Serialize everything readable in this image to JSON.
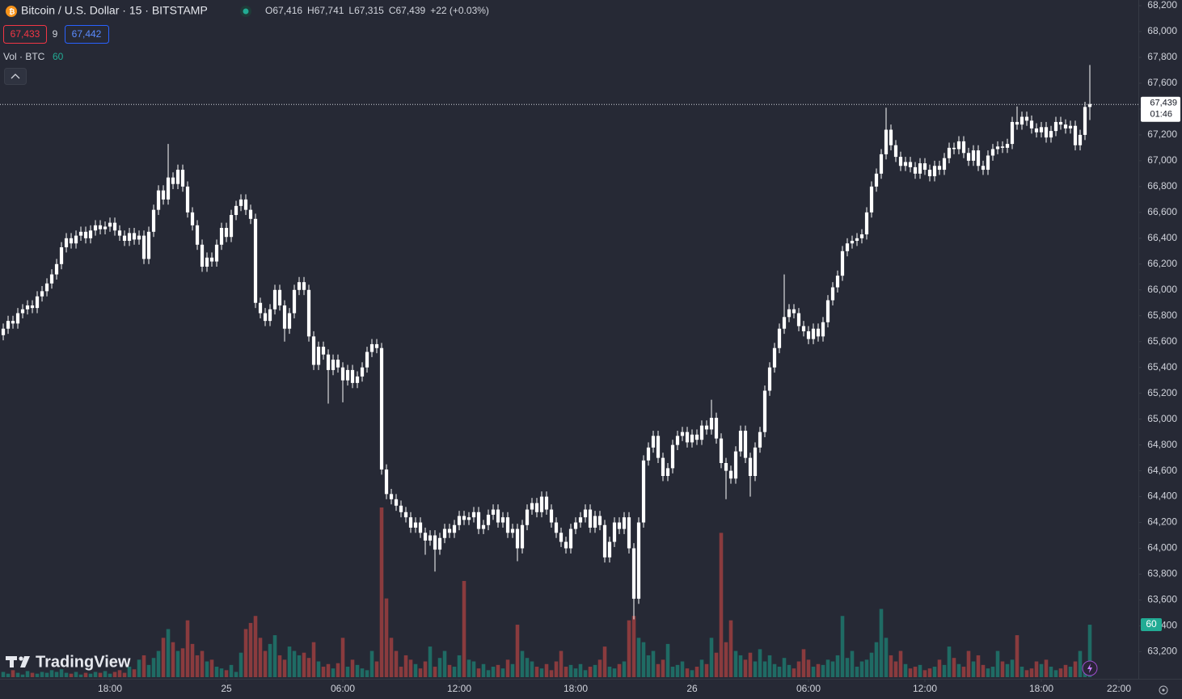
{
  "header": {
    "title": "Bitcoin / U.S. Dollar · 15 · BITSTAMP",
    "ohlc": [
      {
        "label": "O",
        "value": "67,416"
      },
      {
        "label": "H",
        "value": "67,741"
      },
      {
        "label": "L",
        "value": "67,315"
      },
      {
        "label": "C",
        "value": "67,439"
      }
    ],
    "change": "+22 (+0.03%)",
    "bid": "67,433",
    "spread": "9",
    "ask": "67,442",
    "volume_title": "Vol · BTC",
    "volume_value": "60"
  },
  "watermark": "TradingView",
  "chart_data": {
    "type": "candlestick",
    "up_color": "#ffffff",
    "down_color": "#ffffff",
    "volume_up_color": "#1f6b64",
    "volume_down_color": "#8a3b3e",
    "grid": false,
    "ylim": [
      62990,
      68244
    ],
    "yticks": [
      {
        "value": 63200,
        "label": "63,200"
      },
      {
        "value": 63400,
        "label": "63,400"
      },
      {
        "value": 63600,
        "label": "63,600"
      },
      {
        "value": 63800,
        "label": "63,800"
      },
      {
        "value": 64000,
        "label": "64,000"
      },
      {
        "value": 64200,
        "label": "64,200"
      },
      {
        "value": 64400,
        "label": "64,400"
      },
      {
        "value": 64600,
        "label": "64,600"
      },
      {
        "value": 64800,
        "label": "64,800"
      },
      {
        "value": 65000,
        "label": "65,000"
      },
      {
        "value": 65200,
        "label": "65,200"
      },
      {
        "value": 65400,
        "label": "65,400"
      },
      {
        "value": 65600,
        "label": "65,600"
      },
      {
        "value": 65800,
        "label": "65,800"
      },
      {
        "value": 66000,
        "label": "66,000"
      },
      {
        "value": 66200,
        "label": "66,200"
      },
      {
        "value": 66400,
        "label": "66,400"
      },
      {
        "value": 66600,
        "label": "66,600"
      },
      {
        "value": 66800,
        "label": "66,800"
      },
      {
        "value": 67000,
        "label": "67,000"
      },
      {
        "value": 67200,
        "label": "67,200"
      },
      {
        "value": 67400,
        "label": "67,400"
      },
      {
        "value": 67600,
        "label": "67,600"
      },
      {
        "value": 67800,
        "label": "67,800"
      },
      {
        "value": 68000,
        "label": "68,000"
      },
      {
        "value": 68200,
        "label": "68,200"
      }
    ],
    "xlim": [
      -0.67,
      234
    ],
    "xticks": [
      {
        "value": 22,
        "label": "18:00"
      },
      {
        "value": 46,
        "label": "25"
      },
      {
        "value": 70,
        "label": "06:00"
      },
      {
        "value": 94,
        "label": "12:00"
      },
      {
        "value": 118,
        "label": "18:00"
      },
      {
        "value": 142,
        "label": "26"
      },
      {
        "value": 166,
        "label": "06:00"
      },
      {
        "value": 190,
        "label": "12:00"
      },
      {
        "value": 214,
        "label": "18:00"
      },
      {
        "value": 230,
        "label": "22:00"
      }
    ],
    "last_price": {
      "value": 67439,
      "label": "67,439"
    },
    "countdown": "01:46",
    "open": [
      65650,
      65700,
      65760,
      65740,
      65820,
      65850,
      65880,
      65860,
      65950,
      65990,
      66050,
      66120,
      66200,
      66330,
      66400,
      66360,
      66420,
      66450,
      66400,
      66460,
      66500,
      66470,
      66490,
      66520,
      66460,
      66420,
      66380,
      66440,
      66390,
      66420,
      66240,
      66450,
      66620,
      66770,
      66700,
      66870,
      66820,
      66930,
      66800,
      66600,
      66500,
      66350,
      66180,
      66250,
      66220,
      66350,
      66480,
      66410,
      66580,
      66650,
      66700,
      66620,
      66550,
      65900,
      65820,
      65760,
      65850,
      66000,
      65880,
      65700,
      65820,
      66000,
      66060,
      66000,
      65640,
      65420,
      65560,
      65500,
      65380,
      65460,
      65400,
      65300,
      65380,
      65280,
      65330,
      65400,
      65520,
      65580,
      65550,
      64610,
      64420,
      64380,
      64330,
      64280,
      64240,
      64160,
      64200,
      64120,
      64060,
      64100,
      63990,
      64080,
      64150,
      64120,
      64180,
      64250,
      64220,
      64240,
      64280,
      64150,
      64180,
      64260,
      64300,
      64200,
      64240,
      64120,
      64150,
      64000,
      64180,
      64300,
      64350,
      64280,
      64400,
      64300,
      64200,
      64120,
      64050,
      64000,
      64150,
      64200,
      64240,
      64300,
      64160,
      64250,
      64180,
      63930,
      64050,
      64200,
      64150,
      64240,
      64000,
      63610,
      64200,
      64680,
      64780,
      64870,
      64700,
      64560,
      64620,
      64800,
      64870,
      64900,
      64820,
      64880,
      64840,
      64950,
      64920,
      65010,
      64850,
      64660,
      64600,
      64540,
      64750,
      64910,
      64700,
      64560,
      64780,
      64900,
      65220,
      65400,
      65550,
      65700,
      65790,
      65850,
      65820,
      65720,
      65680,
      65620,
      65700,
      65640,
      65750,
      65920,
      66020,
      66110,
      66300,
      66360,
      66380,
      66400,
      66430,
      66600,
      66800,
      66900,
      67050,
      67240,
      67120,
      67030,
      66960,
      66990,
      66950,
      66900,
      66980,
      66930,
      66880,
      66960,
      66930,
      67020,
      67100,
      67090,
      67150,
      67060,
      67000,
      67080,
      66960,
      66930,
      67040,
      67090,
      67110,
      67100,
      67130,
      67300,
      67280,
      67340,
      67310,
      67250,
      67220,
      67260,
      67180,
      67230,
      67300,
      67280,
      67250,
      67270,
      67120,
      67200,
      67416
    ],
    "high": [
      65740,
      65800,
      65800,
      65860,
      65890,
      65920,
      65920,
      65990,
      66030,
      66090,
      66160,
      66240,
      66370,
      66440,
      66440,
      66460,
      66490,
      66490,
      66500,
      66540,
      66540,
      66530,
      66560,
      66560,
      66500,
      66460,
      66480,
      66480,
      66460,
      66460,
      66490,
      66660,
      66810,
      66810,
      67130,
      66910,
      66970,
      66970,
      66840,
      66640,
      66540,
      66390,
      66290,
      66290,
      66390,
      66520,
      66520,
      66620,
      66690,
      66740,
      66740,
      66660,
      66590,
      65940,
      65860,
      65890,
      66040,
      66040,
      65920,
      65860,
      66040,
      66100,
      66100,
      66040,
      65680,
      65600,
      65600,
      65540,
      65500,
      65500,
      65440,
      65420,
      65420,
      65370,
      65440,
      65560,
      65620,
      65620,
      65590,
      64650,
      64460,
      64420,
      64370,
      64320,
      64280,
      64240,
      64240,
      64160,
      64140,
      64140,
      64120,
      64190,
      64190,
      64220,
      64290,
      64290,
      64280,
      64320,
      64320,
      64220,
      64300,
      64340,
      64340,
      64280,
      64280,
      64190,
      64190,
      64220,
      64340,
      64390,
      64390,
      64440,
      64440,
      64340,
      64240,
      64160,
      64090,
      64190,
      64240,
      64280,
      64340,
      64340,
      64290,
      64290,
      64220,
      64090,
      64240,
      64240,
      64280,
      64280,
      64040,
      64240,
      64720,
      64820,
      64910,
      64910,
      64740,
      64660,
      64840,
      64910,
      64940,
      64940,
      64920,
      64920,
      64990,
      64990,
      65150,
      65050,
      64890,
      64700,
      64640,
      64790,
      64950,
      64950,
      64740,
      64820,
      64940,
      65260,
      65440,
      65590,
      65740,
      66120,
      65890,
      65890,
      65860,
      65760,
      65720,
      65740,
      65740,
      65790,
      65960,
      66060,
      66150,
      66340,
      66400,
      66420,
      66440,
      66470,
      66640,
      66840,
      66940,
      67090,
      67410,
      67280,
      67160,
      67070,
      67030,
      67030,
      66990,
      67020,
      67020,
      66970,
      67000,
      67000,
      67060,
      67140,
      67140,
      67190,
      67190,
      67100,
      67120,
      67120,
      67000,
      67080,
      67130,
      67150,
      67150,
      67170,
      67340,
      67420,
      67380,
      67380,
      67350,
      67290,
      67300,
      67300,
      67270,
      67340,
      67340,
      67320,
      67310,
      67310,
      67240,
      67456,
      67741
    ],
    "low": [
      65610,
      65660,
      65700,
      65700,
      65780,
      65810,
      65820,
      65820,
      65910,
      65950,
      66010,
      66080,
      66160,
      66290,
      66320,
      66320,
      66380,
      66360,
      66360,
      66420,
      66430,
      66430,
      66450,
      66420,
      66380,
      66340,
      66340,
      66350,
      66350,
      66200,
      66200,
      66410,
      66580,
      66660,
      66660,
      66780,
      66780,
      66760,
      66560,
      66460,
      66310,
      66140,
      66140,
      66180,
      66180,
      66310,
      66370,
      66370,
      66540,
      66610,
      66580,
      66510,
      65860,
      65780,
      65720,
      65720,
      65810,
      65840,
      65600,
      65660,
      65780,
      65960,
      65960,
      65600,
      65380,
      65380,
      65460,
      65120,
      65340,
      65360,
      65130,
      65260,
      65240,
      65240,
      65290,
      65360,
      65480,
      65510,
      64570,
      64380,
      64340,
      64290,
      64240,
      64200,
      64120,
      64120,
      64080,
      63950,
      64020,
      63820,
      63950,
      64040,
      64080,
      64080,
      64140,
      64180,
      64180,
      64200,
      64110,
      64110,
      64140,
      64220,
      64160,
      64160,
      64080,
      64080,
      63900,
      63960,
      64140,
      64260,
      64240,
      64240,
      64260,
      64160,
      64080,
      64010,
      63960,
      63960,
      64110,
      64160,
      64200,
      64120,
      64120,
      64140,
      63890,
      63890,
      64010,
      64110,
      64110,
      63960,
      63450,
      63570,
      64160,
      64640,
      64740,
      64660,
      64520,
      64520,
      64580,
      64760,
      64830,
      64780,
      64780,
      64800,
      64800,
      64880,
      64880,
      64810,
      64620,
      64380,
      64500,
      64500,
      64710,
      64660,
      64400,
      64520,
      64740,
      64860,
      65180,
      65360,
      65510,
      65660,
      65750,
      65780,
      65680,
      65640,
      65580,
      65580,
      65600,
      65600,
      65710,
      65880,
      65980,
      66070,
      66260,
      66320,
      66340,
      66360,
      66390,
      66560,
      66760,
      66860,
      67010,
      67080,
      66990,
      66920,
      66920,
      66910,
      66860,
      66860,
      66890,
      66840,
      66840,
      66890,
      66890,
      66980,
      67050,
      67050,
      67020,
      66960,
      66960,
      66920,
      66890,
      66890,
      67000,
      67050,
      67060,
      67060,
      67090,
      67240,
      67240,
      67270,
      67210,
      67180,
      67180,
      67140,
      67140,
      67190,
      67240,
      67210,
      67210,
      67080,
      67080,
      67160,
      67315
    ],
    "close": [
      65700,
      65760,
      65740,
      65820,
      65850,
      65880,
      65860,
      65950,
      65990,
      66050,
      66120,
      66200,
      66330,
      66400,
      66360,
      66420,
      66450,
      66400,
      66460,
      66500,
      66470,
      66490,
      66520,
      66460,
      66420,
      66380,
      66440,
      66390,
      66420,
      66240,
      66450,
      66620,
      66770,
      66700,
      66870,
      66820,
      66930,
      66800,
      66600,
      66500,
      66350,
      66180,
      66250,
      66220,
      66350,
      66480,
      66410,
      66580,
      66650,
      66700,
      66620,
      66550,
      65900,
      65820,
      65760,
      65850,
      66000,
      65880,
      65700,
      65820,
      66000,
      66060,
      66000,
      65640,
      65420,
      65560,
      65500,
      65380,
      65460,
      65400,
      65300,
      65380,
      65280,
      65330,
      65400,
      65520,
      65580,
      65550,
      64610,
      64420,
      64380,
      64330,
      64280,
      64240,
      64160,
      64200,
      64120,
      64060,
      64100,
      63990,
      64080,
      64150,
      64120,
      64180,
      64250,
      64220,
      64240,
      64280,
      64150,
      64180,
      64260,
      64300,
      64200,
      64240,
      64120,
      64150,
      64000,
      64180,
      64300,
      64350,
      64280,
      64400,
      64300,
      64200,
      64120,
      64050,
      64000,
      64150,
      64200,
      64240,
      64300,
      64160,
      64250,
      64180,
      63930,
      64050,
      64200,
      64150,
      64240,
      64000,
      63610,
      64200,
      64680,
      64780,
      64870,
      64700,
      64560,
      64620,
      64800,
      64870,
      64900,
      64820,
      64880,
      64840,
      64950,
      64920,
      65010,
      64850,
      64660,
      64600,
      64540,
      64750,
      64910,
      64700,
      64560,
      64780,
      64900,
      65220,
      65400,
      65550,
      65700,
      65790,
      65850,
      65820,
      65720,
      65680,
      65620,
      65700,
      65640,
      65750,
      65920,
      66020,
      66110,
      66300,
      66360,
      66380,
      66400,
      66430,
      66600,
      66800,
      66900,
      67050,
      67240,
      67120,
      67030,
      66960,
      66990,
      66950,
      66900,
      66980,
      66930,
      66880,
      66960,
      66930,
      67020,
      67100,
      67090,
      67150,
      67060,
      67000,
      67080,
      66960,
      66930,
      67040,
      67090,
      67110,
      67100,
      67130,
      67300,
      67280,
      67340,
      67310,
      67250,
      67220,
      67260,
      67180,
      67230,
      67300,
      67280,
      67250,
      67270,
      67120,
      67200,
      67416,
      67439
    ],
    "volume": [
      6,
      4,
      8,
      5,
      3,
      7,
      5,
      4,
      6,
      5,
      8,
      6,
      9,
      5,
      4,
      6,
      3,
      5,
      4,
      6,
      5,
      7,
      4,
      6,
      8,
      5,
      12,
      9,
      20,
      25,
      14,
      22,
      30,
      45,
      55,
      40,
      30,
      33,
      65,
      38,
      25,
      30,
      18,
      20,
      12,
      10,
      8,
      14,
      6,
      28,
      55,
      62,
      70,
      45,
      30,
      38,
      48,
      25,
      20,
      35,
      30,
      25,
      28,
      22,
      40,
      18,
      12,
      15,
      10,
      16,
      45,
      12,
      20,
      14,
      10,
      8,
      30,
      18,
      194,
      90,
      45,
      30,
      12,
      25,
      20,
      15,
      10,
      18,
      35,
      12,
      22,
      30,
      14,
      12,
      25,
      110,
      20,
      18,
      10,
      15,
      8,
      12,
      14,
      10,
      20,
      15,
      60,
      30,
      22,
      18,
      12,
      10,
      15,
      8,
      18,
      30,
      12,
      14,
      10,
      15,
      8,
      12,
      14,
      20,
      35,
      12,
      10,
      15,
      18,
      65,
      70,
      45,
      40,
      25,
      30,
      15,
      20,
      38,
      12,
      14,
      18,
      10,
      8,
      12,
      20,
      15,
      45,
      28,
      165,
      40,
      65,
      30,
      25,
      20,
      28,
      18,
      32,
      18,
      25,
      15,
      12,
      22,
      14,
      10,
      18,
      32,
      20,
      12,
      15,
      14,
      20,
      18,
      25,
      70,
      22,
      30,
      12,
      18,
      20,
      28,
      40,
      78,
      45,
      25,
      18,
      30,
      15,
      10,
      12,
      14,
      8,
      10,
      12,
      20,
      14,
      35,
      22,
      15,
      12,
      30,
      18,
      25,
      14,
      10,
      12,
      30,
      18,
      15,
      20,
      48,
      12,
      8,
      10,
      18,
      15,
      20,
      12,
      8,
      10,
      14,
      12,
      18,
      30,
      15,
      60
    ]
  }
}
